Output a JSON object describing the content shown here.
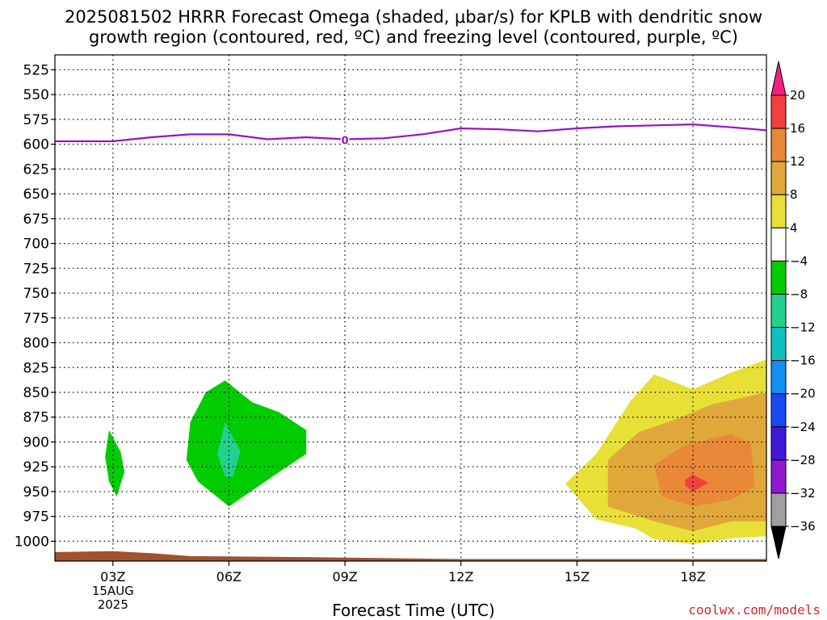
{
  "title_line1": "2025081502 HRRR Forecast Omega (shaded, μbar/s) for KPLB with dendritic snow",
  "title_line2": "growth region (contoured, red, ºC) and freezing level (contoured, purple, ºC)",
  "credit": "coolwx.com/models",
  "chart_data": {
    "type": "contour",
    "xlabel": "Forecast Time (UTC)",
    "ylabel": "",
    "x_ticks": [
      "03Z",
      "06Z",
      "09Z",
      "12Z",
      "15Z",
      "18Z"
    ],
    "x_tick_sub": [
      "15AUG",
      "2025"
    ],
    "x_range_hours": [
      1.5,
      19.9
    ],
    "y_ticks": [
      525,
      550,
      575,
      600,
      625,
      650,
      675,
      700,
      725,
      750,
      775,
      800,
      825,
      850,
      875,
      900,
      925,
      950,
      975,
      1000
    ],
    "y_range_hPa": [
      510,
      1020
    ],
    "grid": true,
    "freezing_level": {
      "label": "0",
      "color": "#9a10c8",
      "points": [
        [
          1.5,
          597
        ],
        [
          3,
          597
        ],
        [
          4,
          593
        ],
        [
          5,
          590
        ],
        [
          6,
          590
        ],
        [
          7,
          595
        ],
        [
          8,
          593
        ],
        [
          9,
          595
        ],
        [
          10,
          594
        ],
        [
          11,
          590
        ],
        [
          12,
          584
        ],
        [
          13,
          585
        ],
        [
          14,
          587
        ],
        [
          15,
          584
        ],
        [
          16,
          582
        ],
        [
          17,
          581
        ],
        [
          18,
          580
        ],
        [
          19,
          583
        ],
        [
          19.9,
          586
        ]
      ]
    },
    "omega_regions": [
      {
        "level": -4,
        "color": "#00cc00",
        "points": [
          [
            2.9,
            888
          ],
          [
            3.2,
            910
          ],
          [
            3.3,
            930
          ],
          [
            3.1,
            955
          ],
          [
            2.9,
            940
          ],
          [
            2.8,
            915
          ]
        ]
      },
      {
        "level": -4,
        "color": "#00cc00",
        "points": [
          [
            5.9,
            838
          ],
          [
            6.6,
            860
          ],
          [
            7.3,
            870
          ],
          [
            8.0,
            888
          ],
          [
            8.0,
            912
          ],
          [
            7.2,
            933
          ],
          [
            6.0,
            965
          ],
          [
            5.2,
            940
          ],
          [
            4.9,
            918
          ],
          [
            5.0,
            880
          ],
          [
            5.4,
            850
          ]
        ]
      },
      {
        "level": -8,
        "color": "#22d090",
        "points": [
          [
            5.9,
            880
          ],
          [
            6.3,
            910
          ],
          [
            6.1,
            935
          ],
          [
            5.9,
            935
          ],
          [
            5.7,
            912
          ]
        ]
      },
      {
        "level": 4,
        "color": "#e8e036",
        "points": [
          [
            14.7,
            942
          ],
          [
            15.5,
            912
          ],
          [
            16.4,
            858
          ],
          [
            17.0,
            832
          ],
          [
            18.0,
            847
          ],
          [
            19.0,
            830
          ],
          [
            19.9,
            817
          ],
          [
            19.9,
            995
          ],
          [
            19.0,
            997
          ],
          [
            18.0,
            1003
          ],
          [
            17.0,
            998
          ],
          [
            16.5,
            987
          ],
          [
            15.5,
            978
          ]
        ]
      },
      {
        "level": 8,
        "color": "#e0a83a",
        "points": [
          [
            15.8,
            918
          ],
          [
            16.6,
            890
          ],
          [
            17.5,
            878
          ],
          [
            18.5,
            862
          ],
          [
            19.9,
            850
          ],
          [
            19.9,
            980
          ],
          [
            19.0,
            980
          ],
          [
            18.0,
            990
          ],
          [
            17.0,
            980
          ],
          [
            15.8,
            965
          ]
        ]
      },
      {
        "level": 12,
        "color": "#e88838",
        "points": [
          [
            17.0,
            923
          ],
          [
            17.8,
            903
          ],
          [
            19.0,
            892
          ],
          [
            19.5,
            902
          ],
          [
            19.6,
            945
          ],
          [
            19.0,
            958
          ],
          [
            18.0,
            965
          ],
          [
            17.2,
            955
          ]
        ]
      },
      {
        "level": 16,
        "color": "#f04040",
        "points": [
          [
            17.8,
            938
          ],
          [
            18.0,
            933
          ],
          [
            18.4,
            941
          ],
          [
            18.0,
            950
          ],
          [
            17.8,
            944
          ]
        ]
      }
    ],
    "terrain": {
      "color": "#a0522d",
      "points": [
        [
          1.5,
          1011
        ],
        [
          3,
          1010
        ],
        [
          4,
          1012
        ],
        [
          5,
          1015
        ],
        [
          8,
          1016
        ],
        [
          12,
          1018
        ],
        [
          19.9,
          1018
        ]
      ]
    },
    "colorbar": {
      "labels": [
        "20",
        "16",
        "12",
        "8",
        "4",
        "−4",
        "−8",
        "−12",
        "−16",
        "−20",
        "−24",
        "−28",
        "−32",
        "−36"
      ],
      "colors": [
        "#f02080",
        "#f04040",
        "#e88838",
        "#e0a83a",
        "#e8e036",
        "#ffffff",
        "#00cc00",
        "#22d090",
        "#10c0c0",
        "#1090f0",
        "#1848f0",
        "#4018d8",
        "#9018d0",
        "#a0a0a0",
        "#000000"
      ]
    }
  }
}
